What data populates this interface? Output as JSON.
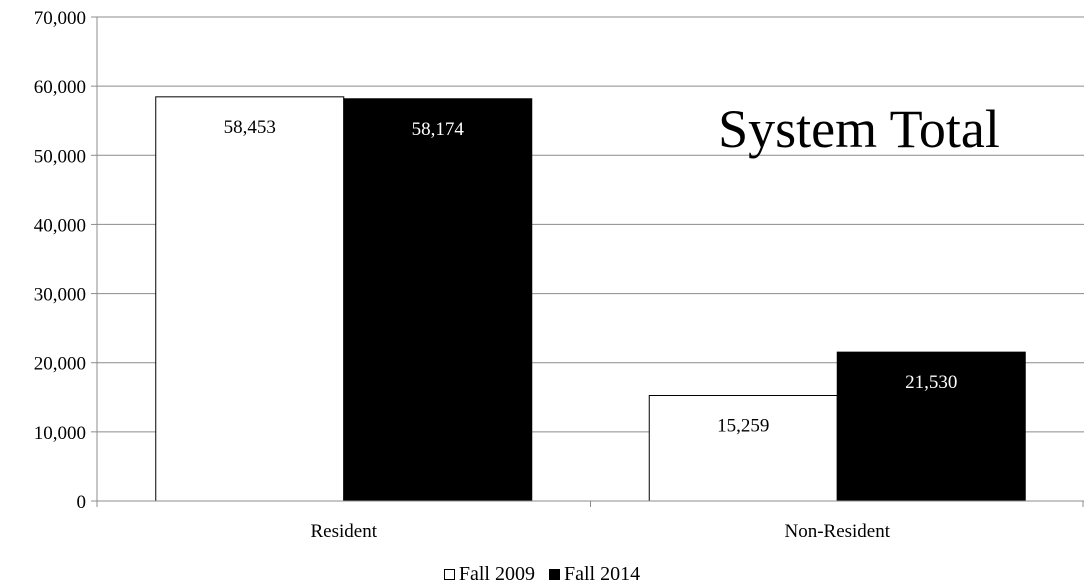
{
  "chart_data": {
    "type": "bar",
    "title": "System Total",
    "categories": [
      "Resident",
      "Non-Resident"
    ],
    "series": [
      {
        "name": "Fall 2009",
        "values": [
          58453,
          15259
        ],
        "labels": [
          "58,453",
          "15,259"
        ],
        "fill": "#ffffff",
        "label_color": "#000000"
      },
      {
        "name": "Fall 2014",
        "values": [
          58174,
          21530
        ],
        "labels": [
          "58,174",
          "21,530"
        ],
        "fill": "#000000",
        "label_color": "#ffffff"
      }
    ],
    "ylim": [
      0,
      70000
    ],
    "yticks": [
      0,
      10000,
      20000,
      30000,
      40000,
      50000,
      60000,
      70000
    ],
    "ytick_labels": [
      "0",
      "10,000",
      "20,000",
      "30,000",
      "40,000",
      "50,000",
      "60,000",
      "70,000"
    ],
    "xlabel": "",
    "ylabel": "",
    "grid": true,
    "legend_position": "bottom-center"
  }
}
